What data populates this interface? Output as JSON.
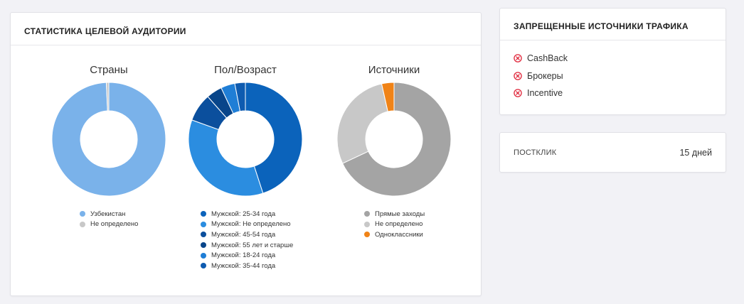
{
  "stats": {
    "title": "Статистика целевой аудитории",
    "charts": [
      {
        "title": "Страны",
        "legend": [
          {
            "label": "Узбекистан",
            "color": "#7ab2ea"
          },
          {
            "label": "Не определено",
            "color": "#c8c8c8"
          }
        ]
      },
      {
        "title": "Пол/Возраст",
        "legend": [
          {
            "label": "Мужской: 25-34 года",
            "color": "#0b63bb"
          },
          {
            "label": "Мужской: Не определено",
            "color": "#2b8de0"
          },
          {
            "label": "Мужской: 45-54 года",
            "color": "#0b4f9d"
          },
          {
            "label": "Мужской: 55 лет и старше",
            "color": "#08458a"
          },
          {
            "label": "Мужской: 18-24 года",
            "color": "#1f7ed6"
          },
          {
            "label": "Мужской: 35-44 года",
            "color": "#0e5bb0"
          }
        ]
      },
      {
        "title": "Источники",
        "legend": [
          {
            "label": "Прямые заходы",
            "color": "#a4a4a4"
          },
          {
            "label": "Не определено",
            "color": "#c8c8c8"
          },
          {
            "label": "Одноклассники",
            "color": "#f08317"
          }
        ]
      }
    ]
  },
  "chart_data": [
    {
      "type": "pie",
      "title": "Страны",
      "categories": [
        "Узбекистан",
        "Не определено"
      ],
      "values": [
        99.3,
        0.7
      ],
      "colors": [
        "#7ab2ea",
        "#c8c8c8"
      ]
    },
    {
      "type": "pie",
      "title": "Пол/Возраст",
      "categories": [
        "Мужской: 25-34 года",
        "Мужской: Не определено",
        "Мужской: 45-54 года",
        "Мужской: 55 лет и старше",
        "Мужской: 18-24 года",
        "Мужской: 35-44 года"
      ],
      "values": [
        45,
        35.5,
        8,
        4.5,
        4,
        3
      ],
      "colors": [
        "#0b63bb",
        "#2b8de0",
        "#0b4f9d",
        "#08458a",
        "#1f7ed6",
        "#0e5bb0"
      ]
    },
    {
      "type": "pie",
      "title": "Источники",
      "categories": [
        "Прямые заходы",
        "Не определено",
        "Одноклассники"
      ],
      "values": [
        68,
        28.5,
        3.5
      ],
      "colors": [
        "#a4a4a4",
        "#c8c8c8",
        "#f08317"
      ]
    }
  ],
  "sources": {
    "title": "Запрещенные источники трафика",
    "items": [
      {
        "label": "CashBack",
        "icon": "x-circle-icon"
      },
      {
        "label": "Брокеры",
        "icon": "x-circle-icon"
      },
      {
        "label": "Incentive",
        "icon": "x-circle-icon"
      }
    ],
    "icon_color": "#e0283c"
  },
  "postclick": {
    "label": "Постклик",
    "value": "15 дней"
  }
}
